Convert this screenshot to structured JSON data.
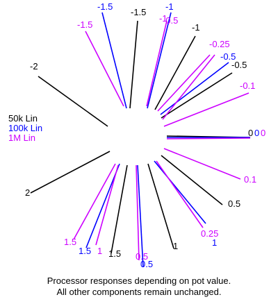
{
  "colors": {
    "lin50k": "#000000",
    "lin100k": "#0000ff",
    "lin1m": "#cc00ff"
  },
  "legend": [
    {
      "label": "50k Lin",
      "color": "#000000"
    },
    {
      "label": "100k Lin",
      "color": "#0000ff"
    },
    {
      "label": "1M Lin",
      "color": "#cc00ff"
    }
  ],
  "caption": {
    "line1": "Processor responses depending on pot value.",
    "line2": "All other components remain unchanged."
  },
  "rays": [
    {
      "value": "0",
      "series": "50k",
      "label": "0",
      "color": "#000000"
    },
    {
      "value": "0",
      "series": "100k",
      "label": "0",
      "color": "#0000ff"
    },
    {
      "value": "0",
      "series": "1M",
      "label": "0",
      "color": "#cc00ff"
    },
    {
      "value": "-2",
      "series": "50k",
      "label": "-2",
      "color": "#000000"
    },
    {
      "value": "-1.5",
      "series": "50k",
      "label": "-1.5",
      "color": "#000000"
    },
    {
      "value": "-1",
      "series": "50k",
      "label": "-1",
      "color": "#000000"
    },
    {
      "value": "-0.5",
      "series": "50k",
      "label": "-0.5",
      "color": "#000000"
    },
    {
      "value": "0.5",
      "series": "50k",
      "label": "0.5",
      "color": "#000000"
    },
    {
      "value": "1",
      "series": "50k",
      "label": "1",
      "color": "#000000"
    },
    {
      "value": "1.5",
      "series": "50k",
      "label": "1.5",
      "color": "#000000"
    },
    {
      "value": "2",
      "series": "50k",
      "label": "2",
      "color": "#000000"
    },
    {
      "value": "-1.5",
      "series": "100k",
      "label": "-1.5",
      "color": "#0000ff"
    },
    {
      "value": "-1",
      "series": "100k",
      "label": "-1",
      "color": "#0000ff"
    },
    {
      "value": "-0.5",
      "series": "100k",
      "label": "-0.5",
      "color": "#0000ff"
    },
    {
      "value": "0.5",
      "series": "100k",
      "label": "0.5",
      "color": "#0000ff"
    },
    {
      "value": "1",
      "series": "100k",
      "label": "1",
      "color": "#0000ff"
    },
    {
      "value": "1.5",
      "series": "100k",
      "label": "1.5",
      "color": "#0000ff"
    },
    {
      "value": "-1.5",
      "series": "1M",
      "label": "-1.5",
      "color": "#cc00ff"
    },
    {
      "value": "-1",
      "series": "1M",
      "label": "-1",
      "color": "#cc00ff"
    },
    {
      "value": "-0.5",
      "series": "1M",
      "label": "-0.5",
      "color": "#cc00ff"
    },
    {
      "value": "-0.25",
      "series": "1M",
      "label": "-0.25",
      "color": "#cc00ff"
    },
    {
      "value": "-0.1",
      "series": "1M",
      "label": "-0.1",
      "color": "#cc00ff"
    },
    {
      "value": "0.1",
      "series": "1M",
      "label": "0.1",
      "color": "#cc00ff"
    },
    {
      "value": "0.25",
      "series": "1M",
      "label": "0.25",
      "color": "#cc00ff"
    },
    {
      "value": "0.5",
      "series": "1M",
      "label": "0.5",
      "color": "#cc00ff"
    },
    {
      "value": "1",
      "series": "1M",
      "label": "1",
      "color": "#cc00ff"
    },
    {
      "value": "1.5",
      "series": "1M",
      "label": "1.5",
      "color": "#cc00ff"
    }
  ]
}
